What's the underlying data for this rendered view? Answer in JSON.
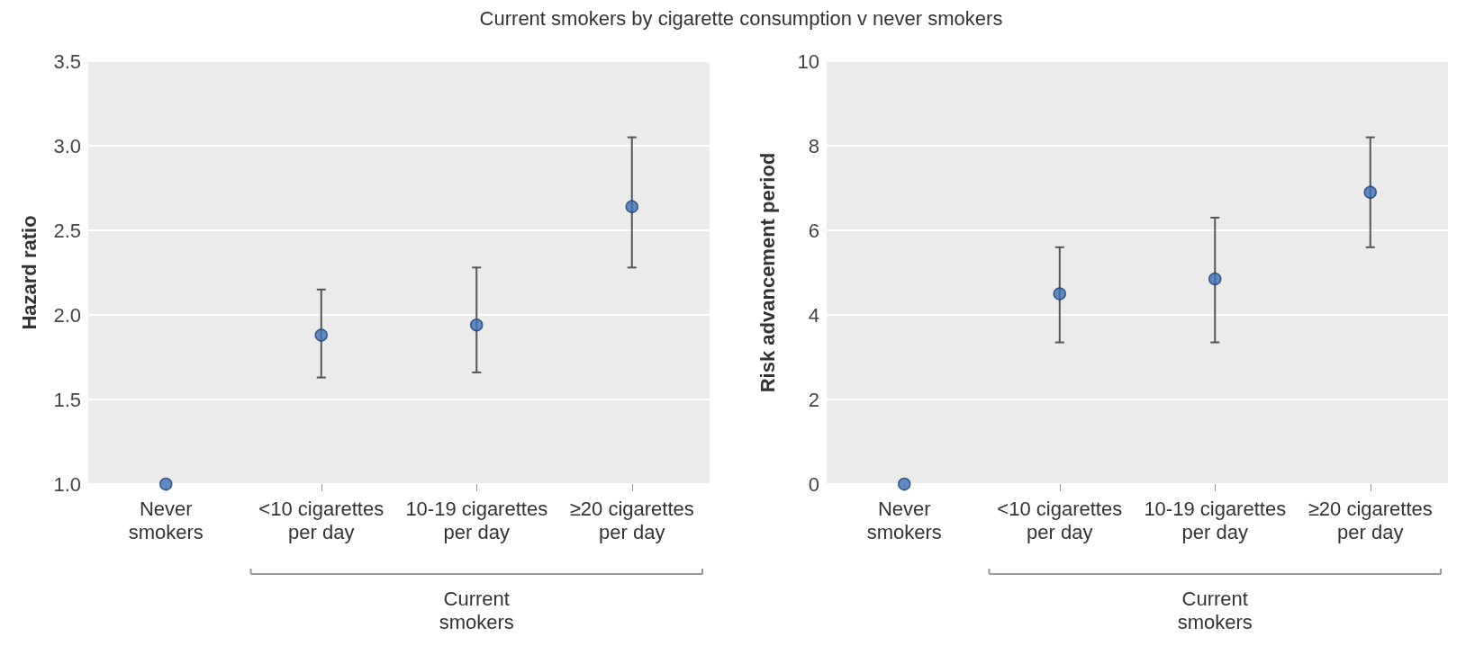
{
  "chart_data": [
    {
      "type": "scatter",
      "title": "Current smokers by cigarette consumption v never smokers",
      "ylabel": "Hazard ratio",
      "categories": [
        "Never smokers",
        "<10 cigarettes per day",
        "10-19 cigarettes per day",
        "≥20 cigarettes per day"
      ],
      "values": [
        1.0,
        1.88,
        1.94,
        2.64
      ],
      "errors": [
        null,
        [
          1.63,
          2.15
        ],
        [
          1.66,
          2.28
        ],
        [
          2.28,
          3.05
        ]
      ],
      "color": "#3d6fb6",
      "ylim": [
        1.0,
        3.5
      ],
      "yticks": [
        {
          "value": 1.0,
          "label": "1.0"
        },
        {
          "value": 1.5,
          "label": "1.5"
        },
        {
          "value": 2.0,
          "label": "2.0"
        },
        {
          "value": 2.5,
          "label": "2.5"
        },
        {
          "value": 3.0,
          "label": "3.0"
        },
        {
          "value": 3.5,
          "label": "3.5"
        }
      ],
      "grid": "y",
      "marker": "circle",
      "annotations": [
        "Current smokers"
      ]
    },
    {
      "type": "scatter",
      "ylabel": "Risk advancement period",
      "categories": [
        "Never smokers",
        "<10 cigarettes per day",
        "10-19 cigarettes per day",
        "≥20 cigarettes per day"
      ],
      "values": [
        0,
        4.5,
        4.85,
        6.9
      ],
      "errors": [
        null,
        [
          3.35,
          5.6
        ],
        [
          3.35,
          6.3
        ],
        [
          5.6,
          8.2
        ]
      ],
      "color": "#3d6fb6",
      "ylim": [
        0,
        10
      ],
      "yticks": [
        0,
        2,
        4,
        6,
        8,
        10
      ],
      "grid": "y",
      "marker": "circle",
      "annotations": [
        "Current smokers"
      ]
    }
  ]
}
